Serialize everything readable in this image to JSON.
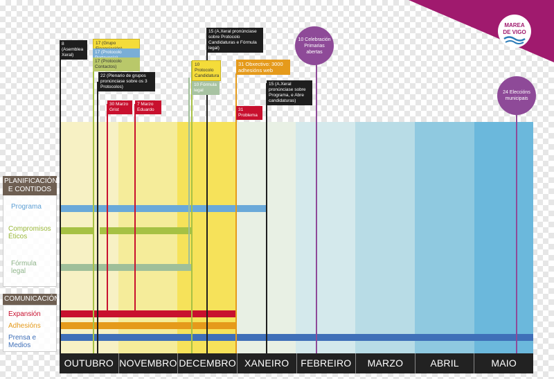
{
  "months": [
    "OUTUBRO",
    "NOVEMBRO",
    "DECEMBRO",
    "XANEIRO",
    "FEBREIRO",
    "MARZO",
    "ABRIL",
    "MAIO"
  ],
  "sections": {
    "planning": {
      "title": "PLANIFICACIÓN E CONTIDOS",
      "rows": [
        "Programa",
        "Compromisos Éticos",
        "Fórmula legal"
      ]
    },
    "communication": {
      "title": "COMUNICACIÓN",
      "rows": [
        "Expansión",
        "Adhesións",
        "Prensa e Medios"
      ]
    }
  },
  "notes": {
    "asemblea": "8 (Asemblea Xeral)",
    "grupo_financiacion": "17 (Grupo Financiación)",
    "protocolo_portavocia": "17 (Protocolo Portavocía)",
    "protocolo_contactos": "17 (Protocolo Contactos)",
    "plenario": "22 (Plenario de grupos pronúnciase sobre os 3 Protocolos)",
    "marzo_small_1": "30 Marzo Grist",
    "marzo_small_2": "7 Marzo Eduardo",
    "axeral_protocolo": "15 (A.Xeral pronúnciase sobre Protocolo Candidaturas e Fórmula legal)",
    "protocolo_candidatura": "10 Protocolo Candidatura",
    "formula_legal": "10 Fórmula legal",
    "obxectivo": "31 Obxectivo: 3000 adhesións web",
    "axeral_programa": "15 (A.Xeral pronúnciase sobre Programa, e Abre candidaturas)",
    "problema": "31 Problema",
    "celebracion": "10 Celebración Primarias abertas",
    "eleccions": "24 Eleccións municipais"
  },
  "logo": {
    "text": "MAREA DE VIGO"
  },
  "colors": {
    "programa": "#6aa9d9",
    "compromisos": "#a6c144",
    "formula": "#9fbf9a",
    "expansion": "#c8102e",
    "adhesions": "#e59a1b",
    "prensa": "#3f6fb8",
    "milestone": "#8e4a98",
    "brand": "#a01a6e"
  }
}
